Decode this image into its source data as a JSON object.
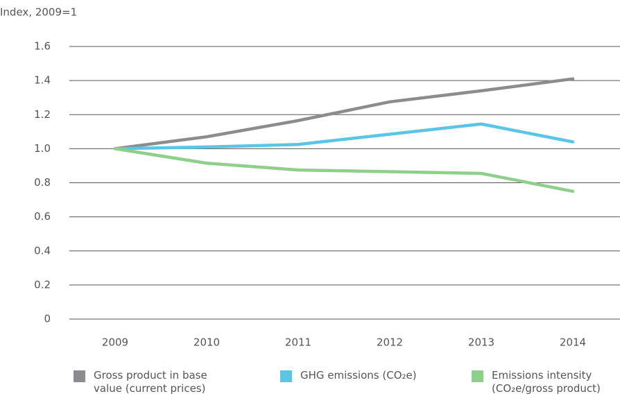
{
  "chart_data": {
    "type": "line",
    "y_axis_label": "Index, 2009=1",
    "categories": [
      "2009",
      "2010",
      "2011",
      "2012",
      "2013",
      "2014"
    ],
    "series": [
      {
        "name": "Gross product in base value (current prices)",
        "color": "#8c8c8e",
        "values": [
          1.0,
          1.07,
          1.165,
          1.275,
          1.34,
          1.41
        ]
      },
      {
        "name": "GHG emissions (CO₂e)",
        "color": "#5bc5e6",
        "values": [
          1.0,
          1.01,
          1.025,
          1.085,
          1.145,
          1.04
        ]
      },
      {
        "name": "Emissions intensity (CO₂e/gross product)",
        "color": "#8ecf8a",
        "values": [
          1.0,
          0.915,
          0.875,
          0.865,
          0.855,
          0.75
        ]
      }
    ],
    "ylim": [
      0,
      1.6
    ],
    "yticks": [
      0,
      0.2,
      0.4,
      0.6,
      0.8,
      {
        "value": 1,
        "label": "1.0"
      },
      1.2,
      1.4,
      1.6
    ],
    "grid": true,
    "legend": "bottom"
  }
}
